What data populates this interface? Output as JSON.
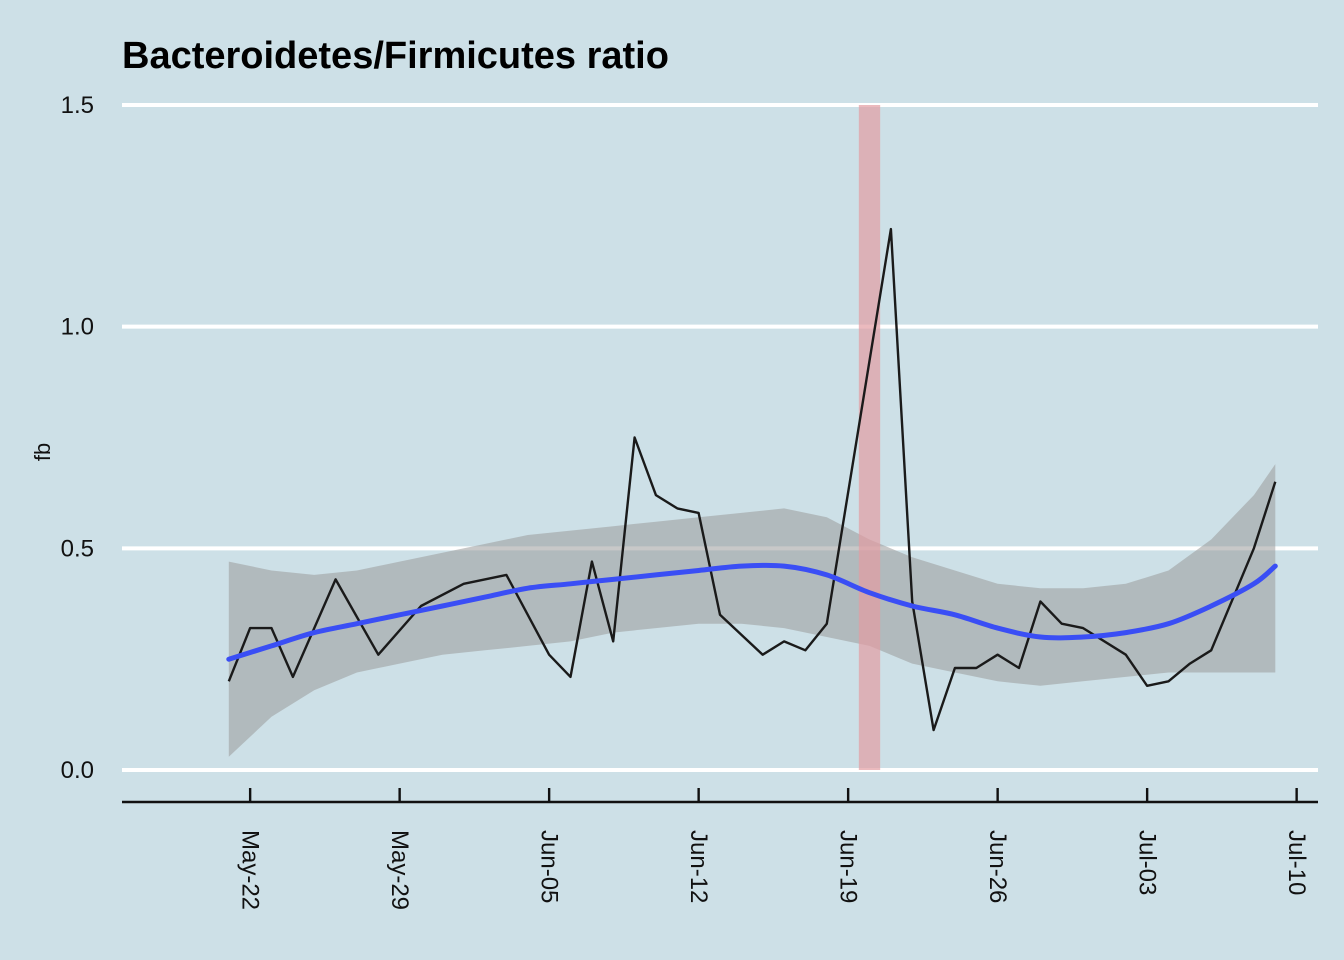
{
  "chart_data": {
    "type": "line",
    "title": "Bacteroidetes/Firmicutes ratio",
    "xlabel": "",
    "ylabel": "fb",
    "ylim": [
      0,
      1.5
    ],
    "y_ticks": [
      0.0,
      0.5,
      1.0,
      1.5
    ],
    "y_tick_labels": [
      "0.0",
      "0.5",
      "1.0",
      "1.5"
    ],
    "xlim": [
      "2022-05-16",
      "2022-07-11"
    ],
    "x_ticks": [
      "2022-05-22",
      "2022-05-29",
      "2022-06-05",
      "2022-06-12",
      "2022-06-19",
      "2022-06-26",
      "2022-07-03",
      "2022-07-10"
    ],
    "x_tick_labels": [
      "May-22",
      "May-29",
      "Jun-05",
      "Jun-12",
      "Jun-19",
      "Jun-26",
      "Jul-03",
      "Jul-10"
    ],
    "grid": "horizontal major lines",
    "background_color": "#cde0e7",
    "series": [
      {
        "style": "line",
        "color": "#1a1a1a",
        "x": [
          "2022-05-21",
          "2022-05-22",
          "2022-05-23",
          "2022-05-24",
          "2022-05-26",
          "2022-05-28",
          "2022-05-30",
          "2022-06-01",
          "2022-06-03",
          "2022-06-05",
          "2022-06-06",
          "2022-06-07",
          "2022-06-08",
          "2022-06-09",
          "2022-06-10",
          "2022-06-11",
          "2022-06-12",
          "2022-06-13",
          "2022-06-15",
          "2022-06-16",
          "2022-06-17",
          "2022-06-18",
          "2022-06-21",
          "2022-06-22",
          "2022-06-23",
          "2022-06-24",
          "2022-06-25",
          "2022-06-26",
          "2022-06-27",
          "2022-06-28",
          "2022-06-29",
          "2022-06-30",
          "2022-07-02",
          "2022-07-03",
          "2022-07-04",
          "2022-07-05",
          "2022-07-06",
          "2022-07-08",
          "2022-07-09"
        ],
        "y": [
          0.2,
          0.32,
          0.32,
          0.21,
          0.43,
          0.26,
          0.37,
          0.42,
          0.44,
          0.26,
          0.21,
          0.47,
          0.29,
          0.75,
          0.62,
          0.59,
          0.58,
          0.35,
          0.26,
          0.29,
          0.27,
          0.33,
          1.22,
          0.38,
          0.09,
          0.23,
          0.23,
          0.26,
          0.23,
          0.38,
          0.33,
          0.32,
          0.26,
          0.19,
          0.2,
          0.24,
          0.27,
          0.5,
          0.65
        ]
      },
      {
        "style": "smooth-fit",
        "color": "#3a4ef5",
        "band_color": "#9a9a9a",
        "x": [
          "2022-05-21",
          "2022-05-23",
          "2022-05-25",
          "2022-05-27",
          "2022-05-29",
          "2022-05-31",
          "2022-06-02",
          "2022-06-04",
          "2022-06-06",
          "2022-06-08",
          "2022-06-10",
          "2022-06-12",
          "2022-06-14",
          "2022-06-16",
          "2022-06-18",
          "2022-06-20",
          "2022-06-22",
          "2022-06-24",
          "2022-06-26",
          "2022-06-28",
          "2022-06-30",
          "2022-07-02",
          "2022-07-04",
          "2022-07-06",
          "2022-07-08",
          "2022-07-09"
        ],
        "y": [
          0.25,
          0.28,
          0.31,
          0.33,
          0.35,
          0.37,
          0.39,
          0.41,
          0.42,
          0.43,
          0.44,
          0.45,
          0.46,
          0.46,
          0.44,
          0.4,
          0.37,
          0.35,
          0.32,
          0.3,
          0.3,
          0.31,
          0.33,
          0.37,
          0.42,
          0.46
        ],
        "lower": [
          0.03,
          0.12,
          0.18,
          0.22,
          0.24,
          0.26,
          0.27,
          0.28,
          0.29,
          0.31,
          0.32,
          0.33,
          0.33,
          0.32,
          0.3,
          0.28,
          0.24,
          0.22,
          0.2,
          0.19,
          0.2,
          0.21,
          0.22,
          0.22,
          0.22,
          0.22
        ],
        "upper": [
          0.47,
          0.45,
          0.44,
          0.45,
          0.47,
          0.49,
          0.51,
          0.53,
          0.54,
          0.55,
          0.56,
          0.57,
          0.58,
          0.59,
          0.57,
          0.52,
          0.48,
          0.45,
          0.42,
          0.41,
          0.41,
          0.42,
          0.45,
          0.52,
          0.62,
          0.69
        ]
      }
    ],
    "highlight": {
      "x": "2022-06-20",
      "color": "#e29da3"
    }
  }
}
